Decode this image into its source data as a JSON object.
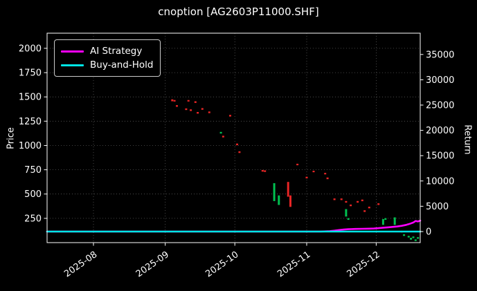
{
  "chart_data": {
    "type": "candlestick",
    "title": "cnoption [AG2603P11000.SHF]",
    "background": "#000000",
    "grid": {
      "on": true,
      "color": "#5a5a5a",
      "style": "dotted"
    },
    "colors": {
      "u": "#00c050",
      "d": "#e82525",
      "ai": "#ff00ff",
      "bh": "#00e5e5"
    },
    "x_axis": {
      "tick_labels": [
        "2025-08",
        "2025-09",
        "2025-10",
        "2025-11",
        "2025-12"
      ],
      "tick_positions_days": [
        20,
        51,
        81,
        112,
        142
      ],
      "domain_days": [
        0,
        161
      ],
      "label_rotation_deg": 35
    },
    "price_axis": {
      "label": "Price",
      "side": "left",
      "ticks": [
        250,
        500,
        750,
        1000,
        1250,
        1500,
        1750,
        2000
      ],
      "range": [
        0,
        2156
      ]
    },
    "return_axis": {
      "label": "Return",
      "side": "right",
      "ticks": [
        0,
        5000,
        10000,
        15000,
        20000,
        25000,
        30000,
        35000
      ],
      "range": [
        -2190,
        39210
      ]
    },
    "legend": {
      "position": "upper-left",
      "entries": [
        {
          "label": "AI Strategy",
          "color": "#ff00ff"
        },
        {
          "label": "Buy-and-Hold",
          "color": "#00e5e5"
        }
      ]
    },
    "candles": [
      [
        54,
        1475,
        1455,
        "d"
      ],
      [
        55,
        1468,
        1452,
        "d"
      ],
      [
        56,
        1415,
        1398,
        "d"
      ],
      [
        60,
        1382,
        1365,
        "d"
      ],
      [
        61,
        1468,
        1452,
        "d"
      ],
      [
        62,
        1372,
        1355,
        "d"
      ],
      [
        64,
        1455,
        1438,
        "d"
      ],
      [
        65,
        1345,
        1328,
        "d"
      ],
      [
        67,
        1385,
        1368,
        "d"
      ],
      [
        70,
        1350,
        1333,
        "d"
      ],
      [
        75,
        1140,
        1123,
        "u"
      ],
      [
        76,
        1100,
        1083,
        "d"
      ],
      [
        79,
        1315,
        1298,
        "d"
      ],
      [
        82,
        1020,
        1003,
        "d"
      ],
      [
        83,
        940,
        923,
        "d"
      ],
      [
        93,
        748,
        731,
        "d"
      ],
      [
        94,
        744,
        727,
        "d"
      ],
      [
        98,
        612,
        428,
        "u"
      ],
      [
        100,
        486,
        388,
        "u"
      ],
      [
        104,
        625,
        473,
        "d"
      ],
      [
        105,
        486,
        368,
        "d"
      ],
      [
        108,
        812,
        796,
        "d"
      ],
      [
        112,
        678,
        661,
        "d"
      ],
      [
        115,
        740,
        724,
        "d"
      ],
      [
        120,
        718,
        702,
        "d"
      ],
      [
        121,
        670,
        653,
        "d"
      ],
      [
        124,
        455,
        438,
        "d"
      ],
      [
        127,
        455,
        438,
        "d"
      ],
      [
        129,
        428,
        411,
        "d"
      ],
      [
        129,
        345,
        268,
        "u"
      ],
      [
        130,
        252,
        235,
        "u"
      ],
      [
        131,
        392,
        375,
        "d"
      ],
      [
        134,
        428,
        411,
        "d"
      ],
      [
        136,
        443,
        426,
        "d"
      ],
      [
        137,
        333,
        316,
        "d"
      ],
      [
        139,
        370,
        353,
        "d"
      ],
      [
        143,
        405,
        388,
        "d"
      ],
      [
        145,
        242,
        183,
        "u"
      ],
      [
        146,
        252,
        235,
        "u"
      ],
      [
        150,
        260,
        183,
        "u"
      ],
      [
        153,
        122,
        105,
        "d"
      ],
      [
        154,
        86,
        69,
        "u"
      ],
      [
        156,
        70,
        53,
        "u"
      ],
      [
        157,
        50,
        30,
        "u"
      ],
      [
        158,
        63,
        46,
        "u"
      ],
      [
        159,
        33,
        16,
        "u"
      ],
      [
        160,
        56,
        39,
        "u"
      ]
    ],
    "series": [
      {
        "name": "AI Strategy",
        "color": "#ff00ff",
        "axis": "return",
        "points": [
          [
            0,
            0
          ],
          [
            60,
            0
          ],
          [
            90,
            0
          ],
          [
            110,
            0
          ],
          [
            118,
            0
          ],
          [
            122,
            80
          ],
          [
            124,
            170
          ],
          [
            126,
            290
          ],
          [
            128,
            390
          ],
          [
            130,
            460
          ],
          [
            133,
            515
          ],
          [
            136,
            545
          ],
          [
            139,
            565
          ],
          [
            141,
            595
          ],
          [
            143,
            665
          ],
          [
            145,
            765
          ],
          [
            147,
            835
          ],
          [
            149,
            915
          ],
          [
            151,
            995
          ],
          [
            153,
            1135
          ],
          [
            155,
            1325
          ],
          [
            156,
            1455
          ],
          [
            157,
            1605
          ],
          [
            158,
            1790
          ],
          [
            159,
            2090
          ],
          [
            160,
            1985
          ],
          [
            161,
            2150
          ]
        ]
      },
      {
        "name": "Buy-and-Hold",
        "color": "#00e5e5",
        "axis": "return",
        "points": [
          [
            0,
            0
          ],
          [
            161,
            0
          ]
        ]
      }
    ]
  }
}
